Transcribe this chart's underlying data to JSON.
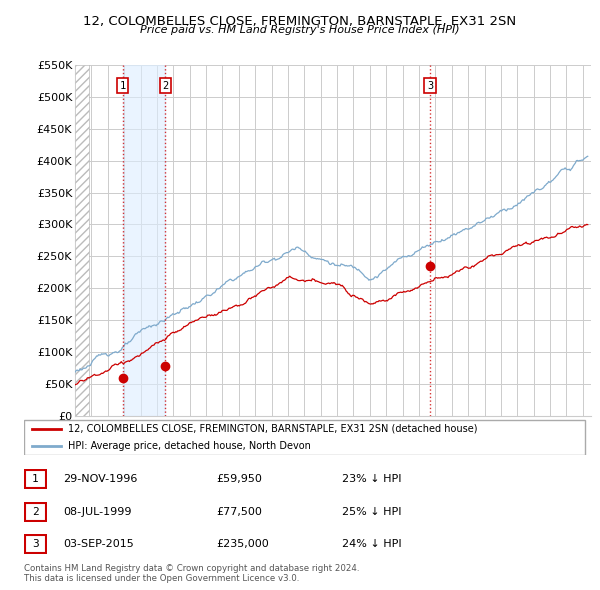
{
  "title": "12, COLOMBELLES CLOSE, FREMINGTON, BARNSTAPLE, EX31 2SN",
  "subtitle": "Price paid vs. HM Land Registry's House Price Index (HPI)",
  "ylim": [
    0,
    550000
  ],
  "yticks": [
    0,
    50000,
    100000,
    150000,
    200000,
    250000,
    300000,
    350000,
    400000,
    450000,
    500000,
    550000
  ],
  "xlim_start": 1994.0,
  "xlim_end": 2025.5,
  "house_color": "#cc0000",
  "hpi_color": "#7faacc",
  "vline_color": "#cc0000",
  "sale_dates": [
    1996.91,
    1999.52,
    2015.67
  ],
  "sale_prices": [
    59950,
    77500,
    235000
  ],
  "sale_labels": [
    "1",
    "2",
    "3"
  ],
  "legend_house": "12, COLOMBELLES CLOSE, FREMINGTON, BARNSTAPLE, EX31 2SN (detached house)",
  "legend_hpi": "HPI: Average price, detached house, North Devon",
  "table_entries": [
    {
      "label": "1",
      "date": "29-NOV-1996",
      "price": "£59,950",
      "pct": "23% ↓ HPI"
    },
    {
      "label": "2",
      "date": "08-JUL-1999",
      "price": "£77,500",
      "pct": "25% ↓ HPI"
    },
    {
      "label": "3",
      "date": "03-SEP-2015",
      "price": "£235,000",
      "pct": "24% ↓ HPI"
    }
  ],
  "footnote": "Contains HM Land Registry data © Crown copyright and database right 2024.\nThis data is licensed under the Open Government Licence v3.0.",
  "grid_color": "#cccccc",
  "shade_color": "#ddeeff",
  "hatch_color": "#cccccc"
}
